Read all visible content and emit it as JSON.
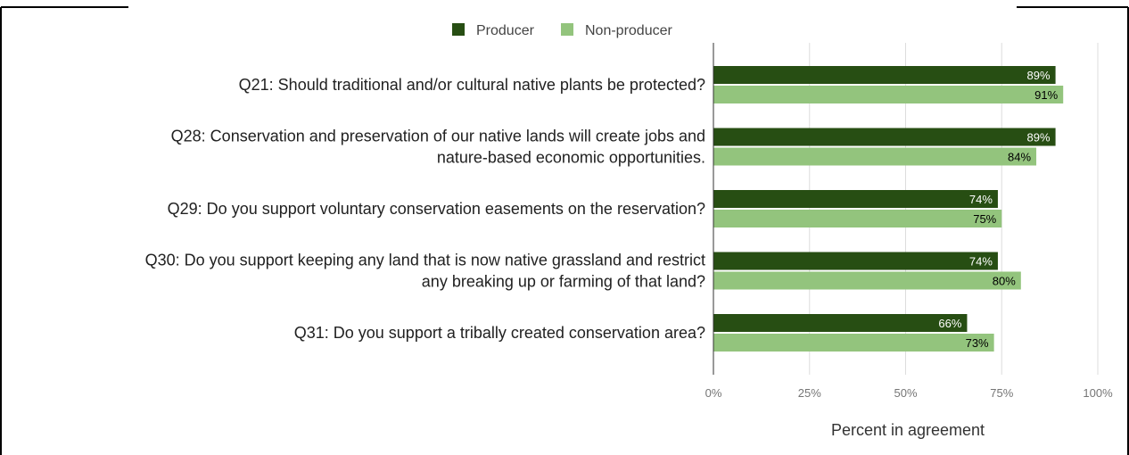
{
  "chart_data": {
    "type": "bar",
    "orientation": "horizontal",
    "title": "",
    "xlabel": "Percent in agreement",
    "ylabel": "",
    "xlim": [
      0,
      100
    ],
    "ticks": [
      "0%",
      "25%",
      "50%",
      "75%",
      "100%"
    ],
    "tick_values": [
      0,
      25,
      50,
      75,
      100
    ],
    "grid": true,
    "legend_position": "top-center",
    "categories": [
      [
        "Q21: Should traditional and/or cultural native plants be protected?"
      ],
      [
        "Q28: Conservation and preservation of our native lands will create jobs and",
        "nature-based economic opportunities."
      ],
      [
        "Q29: Do you support voluntary conservation easements on the reservation?"
      ],
      [
        "Q30: Do you support keeping any land that is now native grassland and restrict",
        "any breaking up or farming of that land?"
      ],
      [
        "Q31: Do you support a tribally created conservation area?"
      ]
    ],
    "series": [
      {
        "name": "Producer",
        "color": "#274e13",
        "label_color": "#ffffff",
        "values": [
          89,
          89,
          74,
          74,
          66
        ],
        "labels": [
          "89%",
          "89%",
          "74%",
          "74%",
          "66%"
        ]
      },
      {
        "name": "Non-producer",
        "color": "#93c47d",
        "label_color": "#000000",
        "values": [
          91,
          84,
          75,
          80,
          73
        ],
        "labels": [
          "91%",
          "84%",
          "75%",
          "80%",
          "73%"
        ]
      }
    ]
  }
}
